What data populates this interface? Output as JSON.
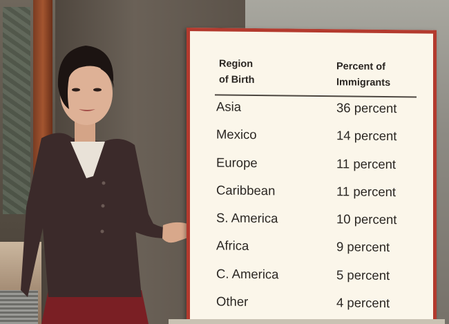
{
  "board": {
    "header_region_line1": "Region",
    "header_region_line2": "of Birth",
    "header_percent_line1": "Percent of",
    "header_percent_line2": "Immigrants",
    "rows": [
      {
        "region": "Asia",
        "percent": "36 percent"
      },
      {
        "region": "Mexico",
        "percent": "14 percent"
      },
      {
        "region": "Europe",
        "percent": "11 percent"
      },
      {
        "region": "Caribbean",
        "percent": "11 percent"
      },
      {
        "region": "S. America",
        "percent": "10 percent"
      },
      {
        "region": "Africa",
        "percent": "9 percent"
      },
      {
        "region": "C. America",
        "percent": "5 percent"
      },
      {
        "region": "Other",
        "percent": "4 percent"
      }
    ]
  },
  "colors": {
    "board_border": "#b33a2e",
    "board_background": "#fbf6ea",
    "text": "#2b2723"
  }
}
